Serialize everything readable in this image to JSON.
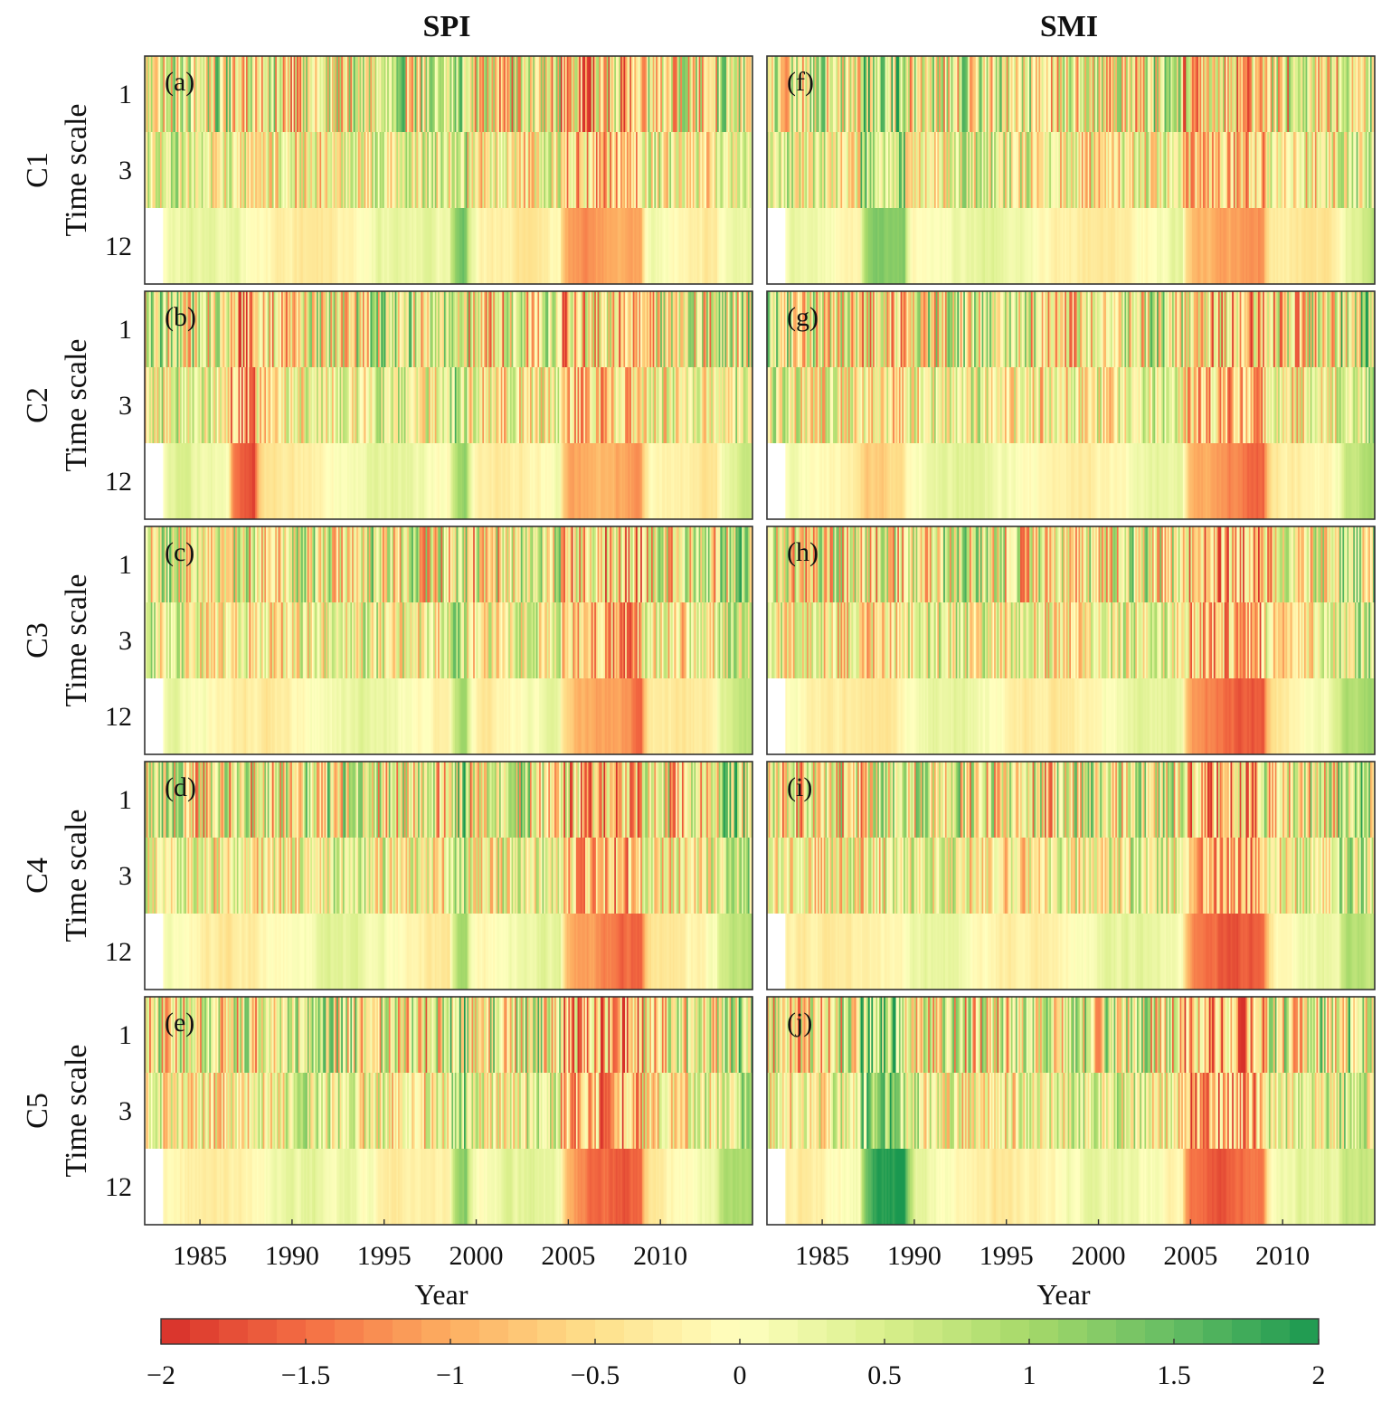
{
  "chart_data": {
    "type": "heatmap",
    "columns": [
      {
        "id": "spi",
        "title": "SPI"
      },
      {
        "id": "smi",
        "title": "SMI"
      }
    ],
    "rows": [
      "C1",
      "C2",
      "C3",
      "C4",
      "C5"
    ],
    "y_axis_label": "Time scale",
    "y_ticks": [
      "1",
      "3",
      "12"
    ],
    "x_axis_label": "Year",
    "x_range": [
      1982,
      2015
    ],
    "x_ticks": [
      1985,
      1990,
      1995,
      2000,
      2005,
      2010
    ],
    "panels": [
      {
        "col": 0,
        "row": 0,
        "label": "(a)"
      },
      {
        "col": 0,
        "row": 1,
        "label": "(b)"
      },
      {
        "col": 0,
        "row": 2,
        "label": "(c)"
      },
      {
        "col": 0,
        "row": 3,
        "label": "(d)"
      },
      {
        "col": 0,
        "row": 4,
        "label": "(e)"
      },
      {
        "col": 1,
        "row": 0,
        "label": "(f)"
      },
      {
        "col": 1,
        "row": 1,
        "label": "(g)"
      },
      {
        "col": 1,
        "row": 2,
        "label": "(h)"
      },
      {
        "col": 1,
        "row": 3,
        "label": "(i)"
      },
      {
        "col": 1,
        "row": 4,
        "label": "(j)"
      }
    ],
    "colorbar": {
      "range": [
        -2,
        2
      ],
      "ticks": [
        -2,
        -1.5,
        -1,
        -0.5,
        0,
        0.5,
        1,
        1.5,
        2
      ],
      "tick_labels": [
        "−2",
        "−1.5",
        "−1",
        "−0.5",
        "0",
        "0.5",
        "1",
        "1.5",
        "2"
      ],
      "colors": [
        "#d7302a",
        "#f46d43",
        "#fdae61",
        "#fee08b",
        "#ffffbf",
        "#d9ef8b",
        "#a6d96a",
        "#66bd63",
        "#1a9850"
      ]
    }
  }
}
